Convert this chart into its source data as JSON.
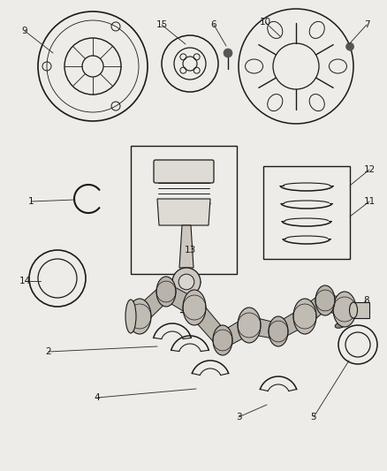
{
  "bg_color": "#eeece8",
  "line_color": "#1a1a1a",
  "lw": 1.0
}
